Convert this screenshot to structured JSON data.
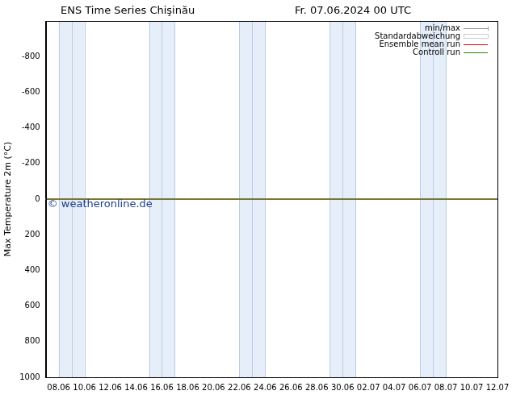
{
  "chart_data": {
    "type": "line",
    "title": "ENS Time Series Chişinău",
    "subtitle": "Fr. 07.06.2024 00 UTC",
    "y_label": "Max Temperature 2m (°C)",
    "annotation": "© weatheronline.de",
    "categories": [
      null,
      "08.06",
      null,
      "10.06",
      null,
      "12.06",
      null,
      "14.06",
      null,
      "16.06",
      null,
      "18.06",
      null,
      "20.06",
      null,
      "22.06",
      null,
      "24.06",
      null,
      "26.06",
      null,
      "28.06",
      null,
      "30.06",
      null,
      "02.07",
      null,
      "04.07",
      null,
      "06.07",
      null,
      "08.07",
      null,
      "10.07",
      null,
      "12.07"
    ],
    "series": [
      {
        "name": "min/max",
        "color": "#999999",
        "values": [
          0,
          0,
          0,
          0,
          0,
          0,
          0,
          0,
          0,
          0,
          0,
          0,
          0,
          0,
          0,
          0,
          0,
          0,
          0,
          0,
          0,
          0,
          0,
          0,
          0,
          0,
          0,
          0,
          0,
          0,
          0,
          0,
          0,
          0,
          0,
          0
        ]
      },
      {
        "name": "Standardabweichung",
        "color": "#cccccc",
        "values": [
          0,
          0,
          0,
          0,
          0,
          0,
          0,
          0,
          0,
          0,
          0,
          0,
          0,
          0,
          0,
          0,
          0,
          0,
          0,
          0,
          0,
          0,
          0,
          0,
          0,
          0,
          0,
          0,
          0,
          0,
          0,
          0,
          0,
          0,
          0,
          0
        ]
      },
      {
        "name": "Ensemble mean run",
        "color": "#dd0000",
        "values": [
          0,
          0,
          0,
          0,
          0,
          0,
          0,
          0,
          0,
          0,
          0,
          0,
          0,
          0,
          0,
          0,
          0,
          0,
          0,
          0,
          0,
          0,
          0,
          0,
          0,
          0,
          0,
          0,
          0,
          0,
          0,
          0,
          0,
          0,
          0,
          0
        ]
      },
      {
        "name": "Controll run",
        "color": "#228800",
        "values": [
          0,
          0,
          0,
          0,
          0,
          0,
          0,
          0,
          0,
          0,
          0,
          0,
          0,
          0,
          0,
          0,
          0,
          0,
          0,
          0,
          0,
          0,
          0,
          0,
          0,
          0,
          0,
          0,
          0,
          0,
          0,
          0,
          0,
          0,
          0,
          0
        ]
      }
    ],
    "shaded_ranges": [
      [
        1,
        3
      ],
      [
        8,
        10
      ],
      [
        15,
        17
      ],
      [
        22,
        24
      ],
      [
        29,
        31
      ]
    ],
    "ylim": [
      -1000,
      1000
    ],
    "yticks": [
      -800,
      -600,
      -400,
      -200,
      0,
      200,
      400,
      600,
      800,
      1000
    ],
    "grid": false,
    "legend": "upper right"
  }
}
